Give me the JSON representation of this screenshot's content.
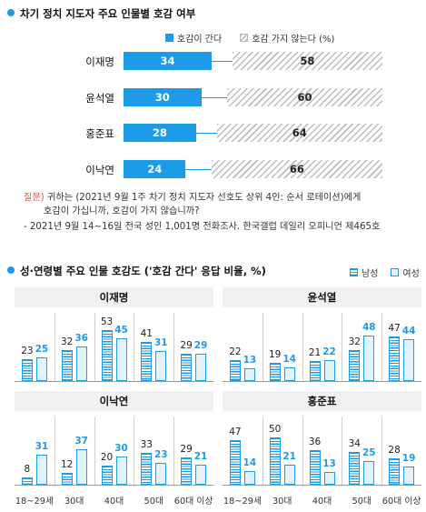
{
  "top": {
    "title": "차기 정치 지도자 주요 인물별 호감 여부",
    "legend_positive": "호감이 간다",
    "legend_negative": "호감 가지 않는다 (%)",
    "colors": {
      "positive": "#1e9be6",
      "negative_hatch": "#bcbcbc"
    }
  },
  "notes": {
    "question_label": "질문)",
    "question_line1": " 귀하는 (2021년 9월 1주 차기 정치 지도자 선호도 상위 4인: 순서 로테이션)에게",
    "question_line2": "호감이 가십니까, 호감이 가지 않습니까?",
    "source": "- 2021년 9월 14~16일 전국 성인 1,001명 전화조사. 한국갤럽 데일리 오피니언 제465호"
  },
  "bottom": {
    "title": "성·연령별 주요 인물 호감도 ('호감 간다' 응답 비율, %)",
    "legend_male": "남성",
    "legend_female": "여성",
    "colors": {
      "male": "#1e9be6",
      "female_fill": "#e3f2fd"
    }
  },
  "chart_data": [
    {
      "type": "bar",
      "orientation": "horizontal-stacked",
      "title": "차기 정치 지도자 주요 인물별 호감 여부",
      "categories": [
        "이재명",
        "윤석열",
        "홍준표",
        "이낙연"
      ],
      "series": [
        {
          "name": "호감이 간다",
          "values": [
            34,
            30,
            28,
            24
          ]
        },
        {
          "name": "호감 가지 않는다",
          "values": [
            58,
            60,
            64,
            66
          ]
        }
      ],
      "unit": "%",
      "legend_position": "top-right"
    },
    {
      "type": "bar",
      "title": "성·연령별 주요 인물 호감도 ('호감 간다' 응답 비율, %)",
      "categories": [
        "18~29세",
        "30대",
        "40대",
        "50대",
        "60대 이상"
      ],
      "legend_position": "top-right",
      "panels": [
        {
          "name": "이재명",
          "male": [
            23,
            32,
            53,
            41,
            29
          ],
          "female": [
            25,
            36,
            45,
            31,
            29
          ]
        },
        {
          "name": "윤석열",
          "male": [
            22,
            19,
            21,
            32,
            47
          ],
          "female": [
            13,
            14,
            22,
            48,
            44
          ]
        },
        {
          "name": "이낙연",
          "male": [
            8,
            12,
            20,
            33,
            29
          ],
          "female": [
            31,
            37,
            30,
            23,
            21
          ]
        },
        {
          "name": "홍준표",
          "male": [
            47,
            50,
            36,
            34,
            28
          ],
          "female": [
            14,
            21,
            13,
            25,
            19
          ]
        }
      ]
    }
  ]
}
